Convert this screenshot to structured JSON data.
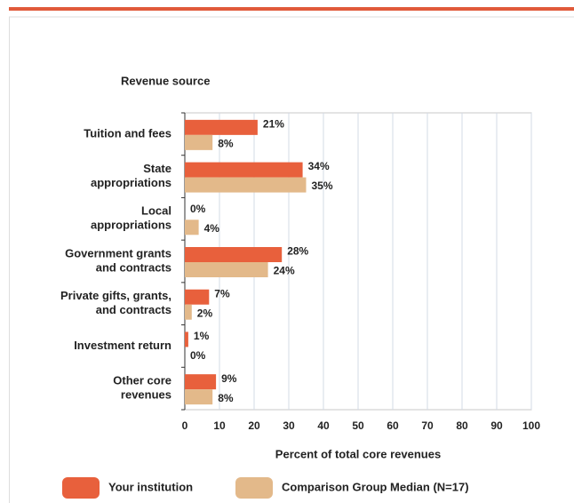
{
  "chart_data": {
    "type": "bar",
    "orientation": "horizontal",
    "y_axis_title": "Revenue source",
    "x_axis_title": "Percent of total core revenues",
    "categories": [
      [
        "Tuition and fees"
      ],
      [
        "State",
        "appropriations"
      ],
      [
        "Local",
        "appropriations"
      ],
      [
        "Government grants",
        "and contracts"
      ],
      [
        "Private gifts, grants,",
        "and contracts"
      ],
      [
        "Investment return"
      ],
      [
        "Other core",
        "revenues"
      ]
    ],
    "series": [
      {
        "name": "Your institution",
        "color": "#e8603c",
        "values": [
          21,
          34,
          0,
          28,
          7,
          1,
          9
        ],
        "value_labels": [
          "21%",
          "34%",
          "0%",
          "28%",
          "7%",
          "1%",
          "9%"
        ]
      },
      {
        "name": "Comparison Group Median (N=17)",
        "color": "#e3b98a",
        "values": [
          8,
          35,
          4,
          24,
          2,
          0,
          8
        ],
        "value_labels": [
          "8%",
          "35%",
          "4%",
          "24%",
          "2%",
          "0%",
          "8%"
        ]
      }
    ],
    "xlim": [
      0,
      100
    ],
    "xticks": [
      0,
      10,
      20,
      30,
      40,
      50,
      60,
      70,
      80,
      90,
      100
    ],
    "grid": true,
    "legend": "bottom"
  }
}
